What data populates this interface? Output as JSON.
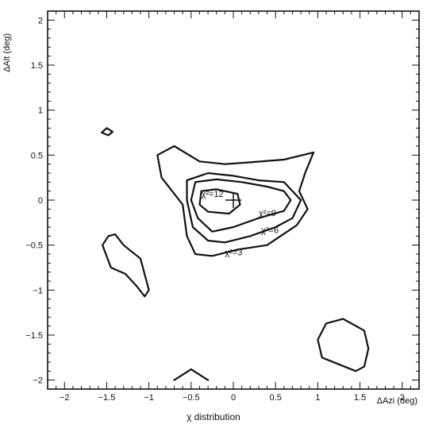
{
  "chart_data": {
    "type": "contour",
    "title": "χ distribution",
    "xlabel": "ΔAzi (deg)",
    "ylabel": "ΔAlt (deg)",
    "xlim": [
      -2.2,
      2.2
    ],
    "ylim": [
      -2.1,
      2.1
    ],
    "xticks": [
      -2,
      -1.5,
      -1,
      -0.5,
      0,
      0.5,
      1,
      1.5,
      2
    ],
    "yticks": [
      -2,
      -1.5,
      -1,
      -0.5,
      0,
      0.5,
      1,
      1.5,
      2
    ],
    "xtick_labels": [
      "−2",
      "−1.5",
      "−1",
      "−0.5",
      "0",
      "0.5",
      "1",
      "1.5",
      "2"
    ],
    "ytick_labels": [
      "−2",
      "−1.5",
      "−1",
      "−0.5",
      "0",
      "0.5",
      "1",
      "1.5",
      "2"
    ],
    "grid": false,
    "center_marker": {
      "x": 0,
      "y": 0
    },
    "contours": [
      {
        "level": "χ²=3",
        "label_at": [
          -0.1,
          -0.58
        ],
        "closed": true,
        "points": [
          [
            -0.9,
            0.5
          ],
          [
            -0.7,
            0.6
          ],
          [
            -0.4,
            0.43
          ],
          [
            -0.1,
            0.4
          ],
          [
            0.2,
            0.42
          ],
          [
            0.6,
            0.45
          ],
          [
            0.95,
            0.53
          ],
          [
            0.85,
            0.3
          ],
          [
            0.78,
            0.1
          ],
          [
            0.88,
            -0.1
          ],
          [
            0.75,
            -0.28
          ],
          [
            0.4,
            -0.5
          ],
          [
            0.05,
            -0.55
          ],
          [
            -0.25,
            -0.62
          ],
          [
            -0.45,
            -0.6
          ],
          [
            -0.55,
            -0.4
          ],
          [
            -0.6,
            -0.05
          ],
          [
            -0.85,
            0.25
          ]
        ]
      },
      {
        "level": "χ²=6",
        "label_at": [
          0.33,
          -0.33
        ],
        "closed": true,
        "points": [
          [
            -0.55,
            0.22
          ],
          [
            -0.3,
            0.3
          ],
          [
            0.0,
            0.27
          ],
          [
            0.3,
            0.22
          ],
          [
            0.6,
            0.2
          ],
          [
            0.8,
            0.0
          ],
          [
            0.7,
            -0.2
          ],
          [
            0.5,
            -0.3
          ],
          [
            0.2,
            -0.4
          ],
          [
            -0.1,
            -0.47
          ],
          [
            -0.3,
            -0.45
          ],
          [
            -0.48,
            -0.3
          ],
          [
            -0.55,
            0.0
          ]
        ]
      },
      {
        "level": "χ²=9",
        "label_at": [
          0.3,
          -0.14
        ],
        "closed": true,
        "points": [
          [
            -0.45,
            0.2
          ],
          [
            -0.2,
            0.23
          ],
          [
            0.1,
            0.2
          ],
          [
            0.4,
            0.15
          ],
          [
            0.6,
            0.1
          ],
          [
            0.68,
            0.0
          ],
          [
            0.6,
            -0.12
          ],
          [
            0.3,
            -0.2
          ],
          [
            0.0,
            -0.3
          ],
          [
            -0.25,
            -0.35
          ],
          [
            -0.42,
            -0.2
          ],
          [
            -0.5,
            0.0
          ]
        ]
      },
      {
        "level": "χ²=12",
        "label_at": [
          -0.38,
          0.07
        ],
        "closed": true,
        "points": [
          [
            -0.38,
            0.1
          ],
          [
            -0.2,
            0.12
          ],
          [
            0.05,
            0.07
          ],
          [
            0.08,
            -0.05
          ],
          [
            -0.05,
            -0.15
          ],
          [
            -0.3,
            -0.13
          ],
          [
            -0.4,
            -0.05
          ]
        ]
      },
      {
        "level": "",
        "closed": true,
        "points": [
          [
            -1.5,
            0.8
          ],
          [
            -1.43,
            0.76
          ],
          [
            -1.48,
            0.72
          ],
          [
            -1.56,
            0.75
          ]
        ]
      },
      {
        "level": "",
        "closed": true,
        "points": [
          [
            -1.48,
            -0.4
          ],
          [
            -1.4,
            -0.38
          ],
          [
            -1.3,
            -0.5
          ],
          [
            -1.1,
            -0.65
          ],
          [
            -1.0,
            -1.0
          ],
          [
            -1.05,
            -1.07
          ],
          [
            -1.15,
            -0.95
          ],
          [
            -1.28,
            -0.82
          ],
          [
            -1.45,
            -0.75
          ],
          [
            -1.55,
            -0.5
          ]
        ]
      },
      {
        "level": "",
        "closed": true,
        "points": [
          [
            1.0,
            -1.55
          ],
          [
            1.1,
            -1.37
          ],
          [
            1.3,
            -1.32
          ],
          [
            1.55,
            -1.45
          ],
          [
            1.6,
            -1.65
          ],
          [
            1.55,
            -1.85
          ],
          [
            1.45,
            -1.9
          ],
          [
            1.05,
            -1.75
          ]
        ]
      },
      {
        "level": "",
        "closed": false,
        "points": [
          [
            -0.7,
            -2.0
          ],
          [
            -0.5,
            -1.88
          ],
          [
            -0.3,
            -2.0
          ]
        ]
      }
    ]
  }
}
